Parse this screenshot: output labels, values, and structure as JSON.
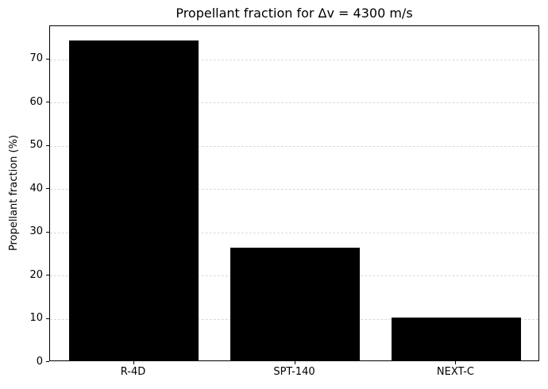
{
  "chart_data": {
    "type": "bar",
    "title": "Propellant fraction for Δv = 4300 m/s",
    "ylabel": "Propellant fraction (%)",
    "xlabel": "",
    "categories": [
      "R-4D",
      "SPT-140",
      "NEXT-C"
    ],
    "values": [
      74,
      26,
      9.9
    ],
    "yticks": [
      0,
      10,
      20,
      30,
      40,
      50,
      60,
      70
    ],
    "ylim": [
      0,
      77.7
    ],
    "xlim": [
      -0.52,
      2.52
    ],
    "bar_width_units": 0.8,
    "bar_color": "#000000",
    "grid": "horizontal",
    "grid_style": "dashed",
    "grid_color": "#d9d9d9",
    "axis_color": "#000000",
    "text_color": "#000000",
    "background_color": "#ffffff",
    "legend": "none"
  }
}
